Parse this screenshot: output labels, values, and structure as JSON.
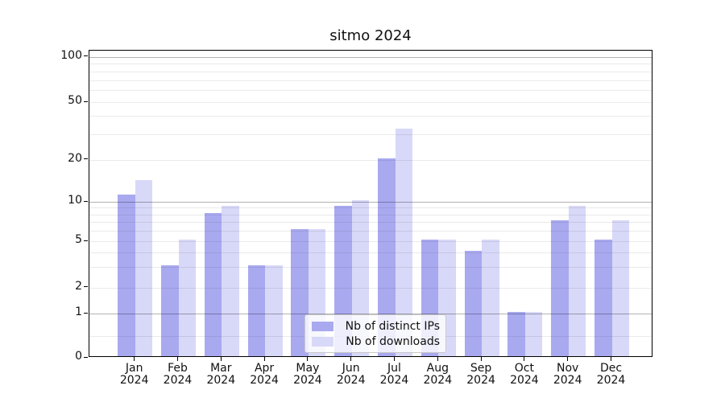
{
  "chart_data": {
    "type": "bar",
    "title": "sitmo 2024",
    "categories": [
      "Jan",
      "Feb",
      "Mar",
      "Apr",
      "May",
      "Jun",
      "Jul",
      "Aug",
      "Sep",
      "Oct",
      "Nov",
      "Dec"
    ],
    "category_year": "2024",
    "series": [
      {
        "name": "Nb of distinct IPs",
        "color": "#a9a9f0",
        "values": [
          11,
          3,
          8,
          3,
          6,
          9,
          20,
          5,
          4,
          1,
          7,
          5
        ]
      },
      {
        "name": "Nb of downloads",
        "color": "#d8d8f8",
        "values": [
          14,
          5,
          9,
          3,
          6,
          10,
          32,
          5,
          5,
          1,
          9,
          7
        ]
      }
    ],
    "xlabel": "",
    "ylabel": "",
    "yscale": "log-like (0, 1, 2, 5, 10, 20, 50, 100)",
    "ylim": [
      0,
      120
    ],
    "yticks": [
      0,
      1,
      2,
      5,
      10,
      20,
      50,
      100
    ],
    "ytick_labels": [
      "0",
      "1",
      "2",
      "5",
      "10",
      "20",
      "50",
      "100"
    ],
    "major_grid_values": [
      1,
      10,
      100
    ],
    "light_grid_values": [
      0.5,
      2,
      3,
      4,
      5,
      6,
      7,
      8,
      9,
      20,
      30,
      40,
      50,
      60,
      70,
      80,
      90
    ],
    "grid": true,
    "legend_position": "lower center"
  },
  "colors": {
    "distinct_ips_bar": "#a9a9f0",
    "downloads_bar": "#d8d8f8",
    "major_grid": "#b3b3b3",
    "minor_grid": "#eaeaea",
    "spine": "#000000",
    "background": "#ffffff"
  }
}
